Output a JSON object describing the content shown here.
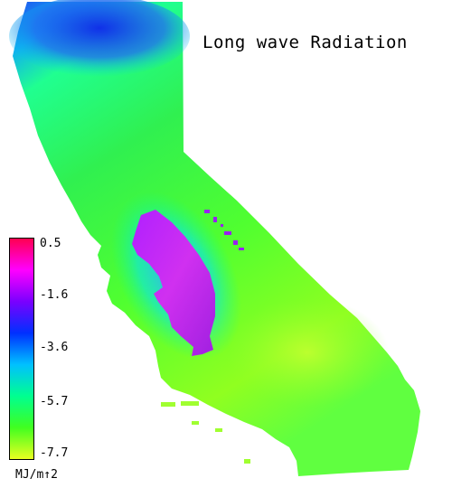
{
  "map": {
    "title": "Long wave Radiation",
    "legend": {
      "ticks": [
        "0.5",
        "-1.6",
        "-3.6",
        "-5.7",
        "-7.7"
      ],
      "unit": "MJ/m↑2",
      "gradient": [
        "#ff0050",
        "#ff00ff",
        "#7a00ff",
        "#0030ff",
        "#00c0ff",
        "#00ff90",
        "#40ff20",
        "#e8ff20"
      ]
    },
    "colors": {
      "dominant": "#20f060",
      "north_cold": "#2040f0",
      "valley_low": "#c020ff",
      "south_dry": "#a0ff30"
    }
  }
}
